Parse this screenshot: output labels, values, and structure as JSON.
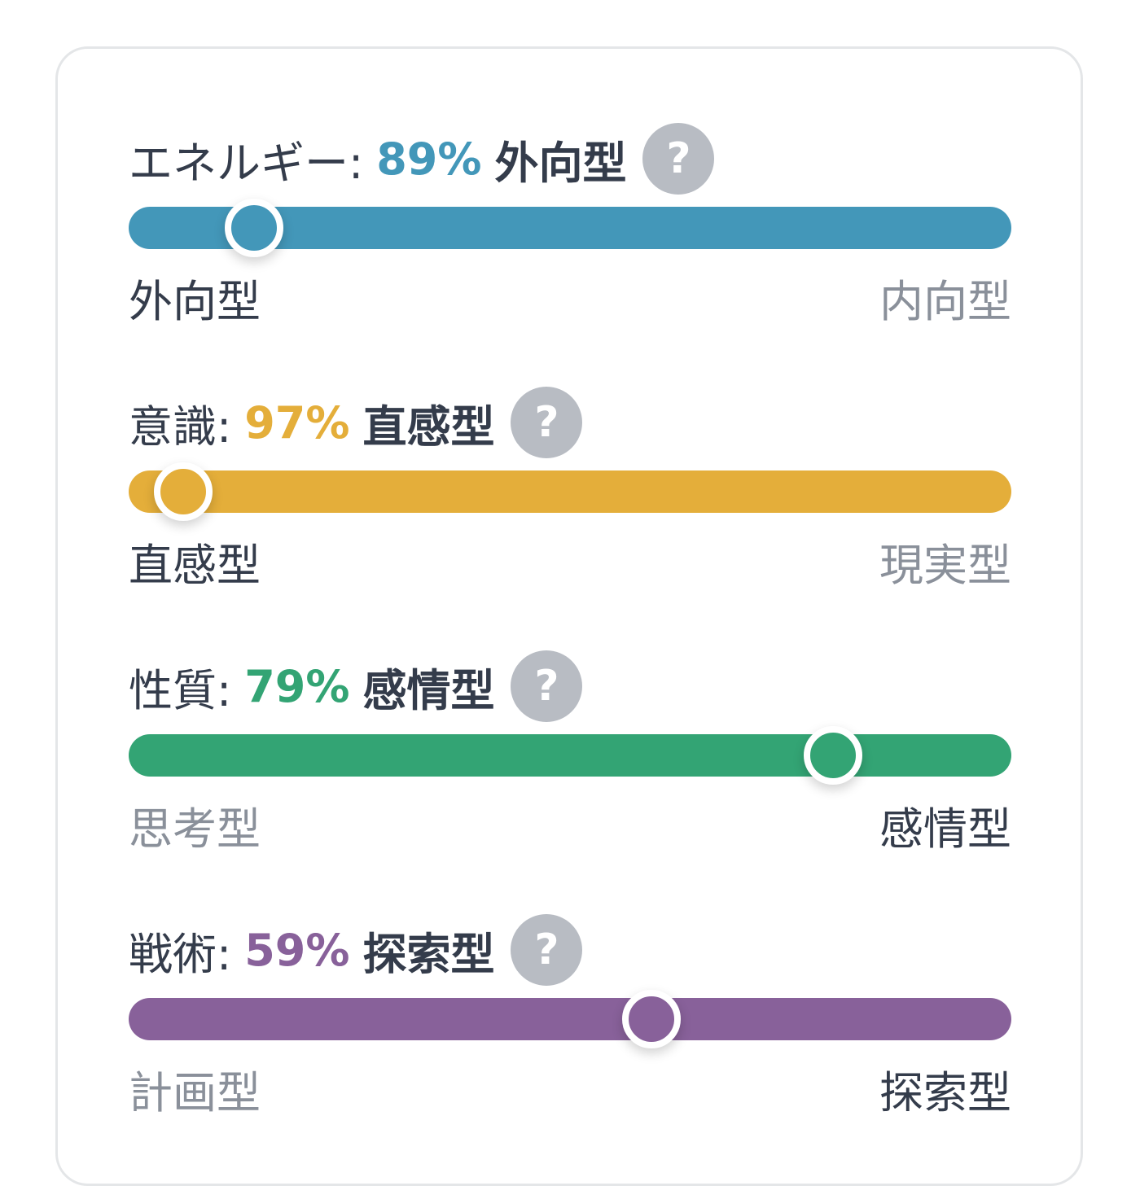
{
  "colors": {
    "energy": "#4397b9",
    "mind": "#e4ae3a",
    "nature": "#33a474",
    "tactics": "#88619a"
  },
  "help_icon_glyph": "?",
  "traits": [
    {
      "name": "エネルギー:",
      "percent": "89%",
      "type": "外向型",
      "left_pole": "外向型",
      "right_pole": "内向型",
      "position_percent": 14.2,
      "active_side": "left",
      "color_key": "energy"
    },
    {
      "name": "意識:",
      "percent": "97%",
      "type": "直感型",
      "left_pole": "直感型",
      "right_pole": "現実型",
      "position_percent": 6.2,
      "active_side": "left",
      "color_key": "mind"
    },
    {
      "name": "性質:",
      "percent": "79%",
      "type": "感情型",
      "left_pole": "思考型",
      "right_pole": "感情型",
      "position_percent": 79.8,
      "active_side": "right",
      "color_key": "nature"
    },
    {
      "name": "戦術:",
      "percent": "59%",
      "type": "探索型",
      "left_pole": "計画型",
      "right_pole": "探索型",
      "position_percent": 59.2,
      "active_side": "right",
      "color_key": "tactics"
    }
  ]
}
